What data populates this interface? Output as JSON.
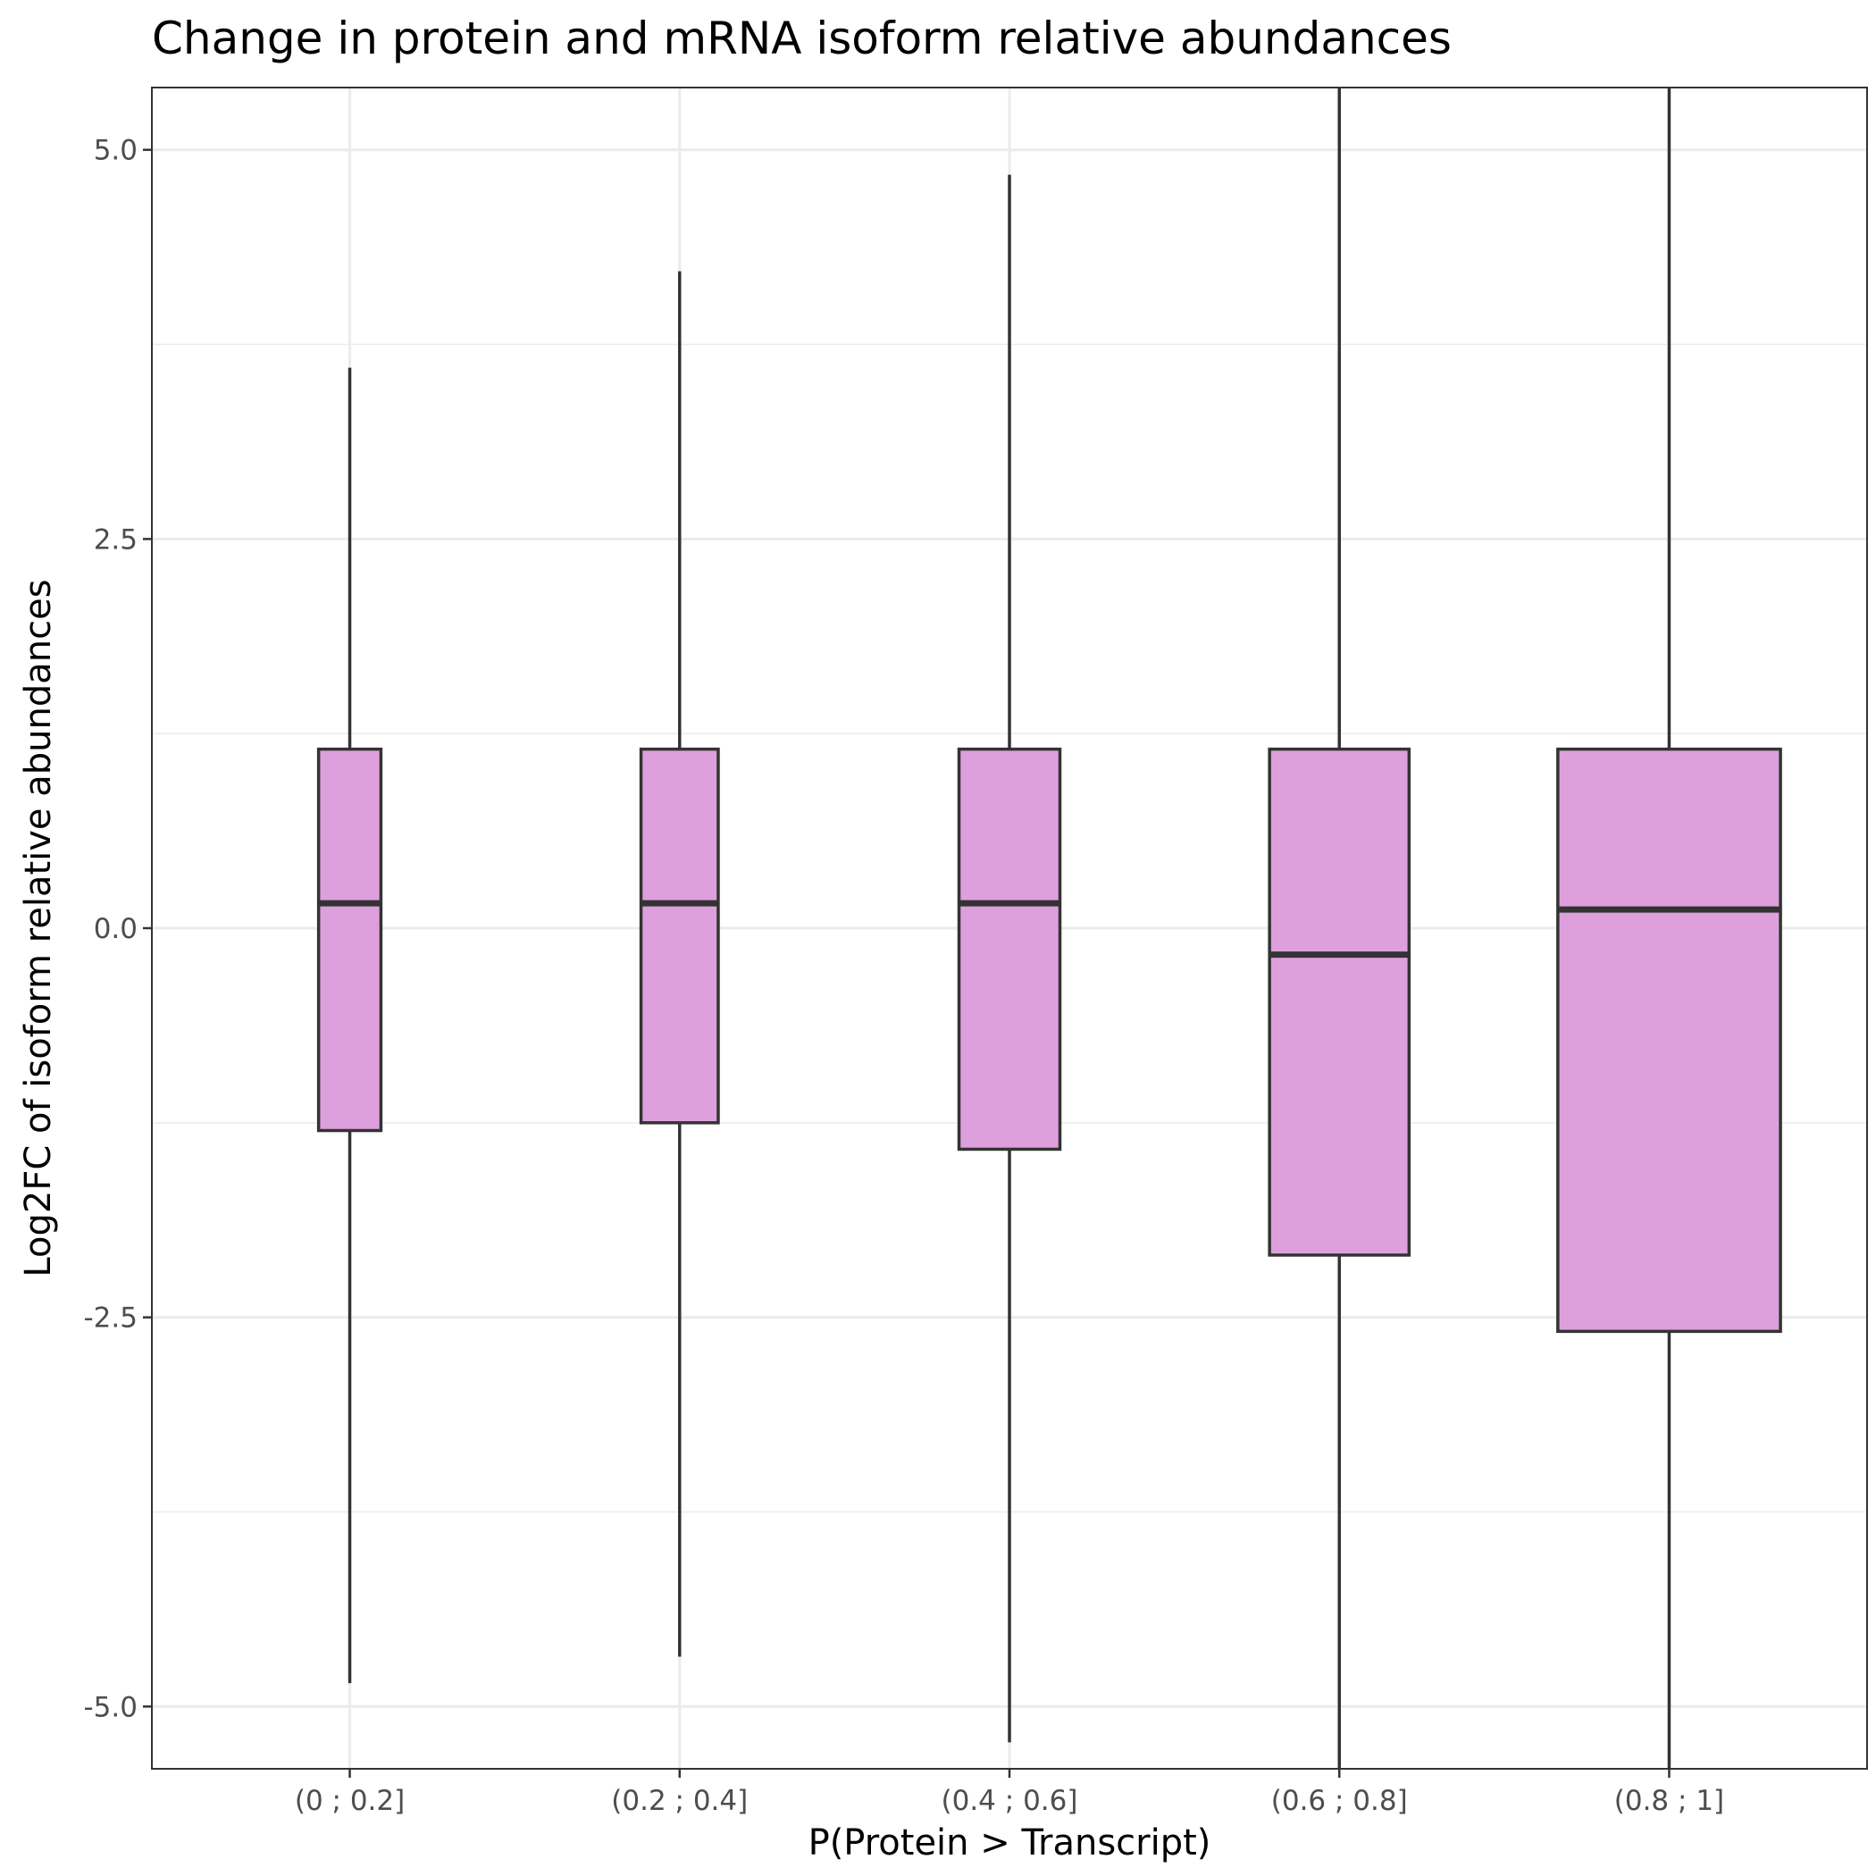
{
  "chart_data": {
    "type": "box",
    "title": "Change in protein and mRNA isoform relative abundances",
    "xlabel": "P(Protein > Transcript)",
    "ylabel": "Log2FC of isoform relative abundances",
    "categories": [
      "(0 ; 0.2]",
      "(0.2 ; 0.4]",
      "(0.4 ; 0.6]",
      "(0.6 ; 0.8]",
      "(0.8 ; 1]"
    ],
    "y_ticks": [
      -5.0,
      -2.5,
      0.0,
      2.5,
      5.0
    ],
    "y_tick_labels": [
      "-5.0",
      "-2.5",
      "0.0",
      "2.5",
      "5.0"
    ],
    "ylim": [
      -5.4,
      5.4
    ],
    "grid": true,
    "legend": "none",
    "colors": {
      "box_fill": "#dda0dd",
      "box_outline": "#333333",
      "grid": "#ebebeb",
      "panel_border": "#333333"
    },
    "boxes": [
      {
        "category": "(0 ; 0.2]",
        "q1": -1.3,
        "median": 0.16,
        "q3": 1.15,
        "whisker_low": -4.85,
        "whisker_high": 3.6,
        "relative_width": 0.21
      },
      {
        "category": "(0.2 ; 0.4]",
        "q1": -1.25,
        "median": 0.16,
        "q3": 1.15,
        "whisker_low": -4.68,
        "whisker_high": 4.22,
        "relative_width": 0.26
      },
      {
        "category": "(0.4 ; 0.6]",
        "q1": -1.42,
        "median": 0.16,
        "q3": 1.15,
        "whisker_low": -5.23,
        "whisker_high": 4.84,
        "relative_width": 0.34
      },
      {
        "category": "(0.6 ; 0.8]",
        "q1": -2.1,
        "median": -0.17,
        "q3": 1.15,
        "whisker_low": -5.4,
        "whisker_high": 5.4,
        "relative_width": 0.47
      },
      {
        "category": "(0.8 ; 1]",
        "q1": -2.59,
        "median": 0.12,
        "q3": 1.15,
        "whisker_low": -5.4,
        "whisker_high": 5.4,
        "relative_width": 0.75
      }
    ]
  }
}
